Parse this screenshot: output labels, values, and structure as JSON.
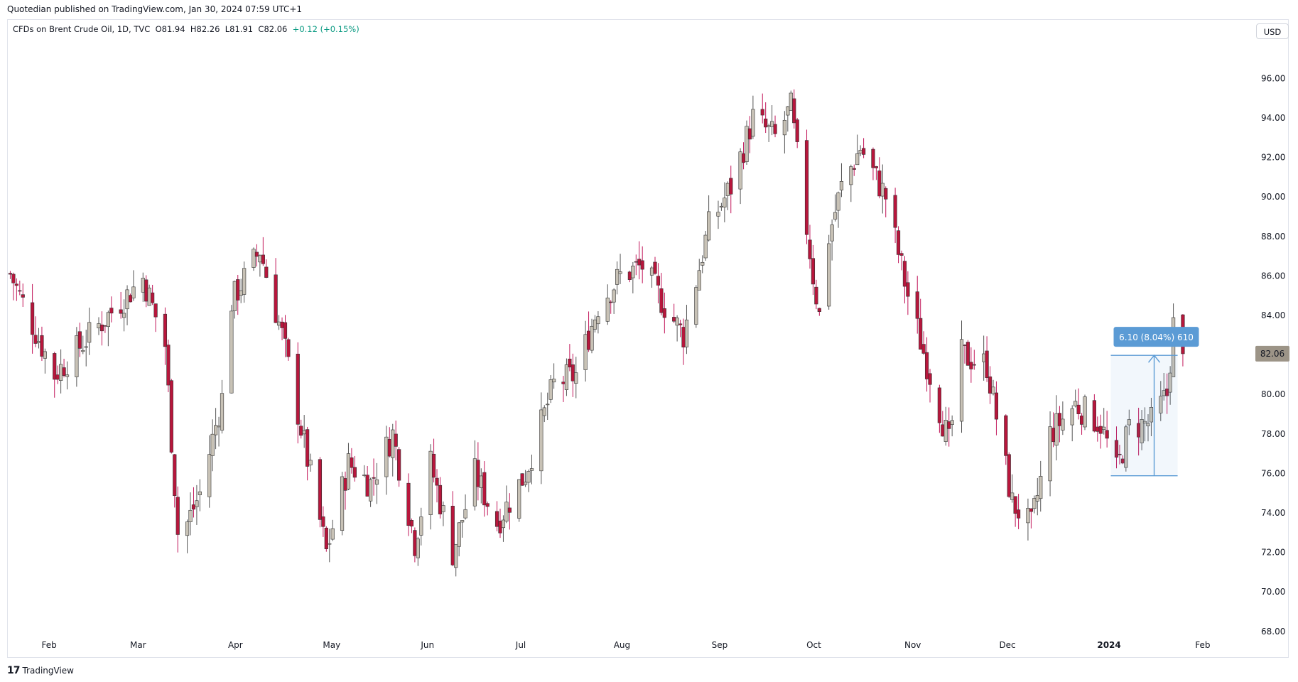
{
  "header": {
    "published": "Quotedian published on TradingView.com, Jan 30, 2024 07:59 UTC+1"
  },
  "legend": {
    "symbol": "CFDs on Brent Crude Oil, 1D, TVC",
    "open": "O81.94",
    "high": "H82.26",
    "low": "L81.91",
    "close": "C82.06",
    "change": "+0.12 (+0.15%)"
  },
  "currency": "USD",
  "footer": {
    "brand": "TradingView"
  },
  "colors": {
    "up_fill": "#c8c2b6",
    "down_fill": "#b8163c",
    "up_wick": "#555555",
    "down_wick": "#c2185b",
    "measure": "#5b9bd5",
    "price_tag": "#9c9487"
  },
  "chart_data": {
    "type": "candlestick",
    "y_ticks": [
      "96.00",
      "94.00",
      "92.00",
      "90.00",
      "88.00",
      "86.00",
      "84.00",
      "82.00",
      "80.00",
      "78.00",
      "76.00",
      "74.00",
      "72.00",
      "70.00",
      "68.00"
    ],
    "ylim": [
      67.5,
      96.5
    ],
    "x_labels": [
      {
        "label": "Feb",
        "date": "2023-02-01",
        "bold": false
      },
      {
        "label": "Mar",
        "date": "2023-03-01",
        "bold": false
      },
      {
        "label": "Apr",
        "date": "2023-04-01",
        "bold": false
      },
      {
        "label": "May",
        "date": "2023-05-01",
        "bold": false
      },
      {
        "label": "Jun",
        "date": "2023-06-01",
        "bold": false
      },
      {
        "label": "Jul",
        "date": "2023-07-01",
        "bold": false
      },
      {
        "label": "Aug",
        "date": "2023-08-01",
        "bold": false
      },
      {
        "label": "Sep",
        "date": "2023-09-01",
        "bold": false
      },
      {
        "label": "Oct",
        "date": "2023-10-01",
        "bold": false
      },
      {
        "label": "Nov",
        "date": "2023-11-01",
        "bold": false
      },
      {
        "label": "Dec",
        "date": "2023-12-01",
        "bold": false
      },
      {
        "label": "2024",
        "date": "2024-01-01",
        "bold": true
      },
      {
        "label": "Feb",
        "date": "2024-02-01",
        "bold": false
      }
    ],
    "xlim": [
      "2023-01-22",
      "2024-02-16"
    ],
    "last_price": {
      "value": 82.06,
      "label": "82.06"
    },
    "measure": {
      "label": "6.10 (8.04%) 610",
      "from_date": "2024-01-08",
      "to_date": "2024-01-26",
      "from_price": 75.88,
      "to_price": 81.98
    },
    "closes": [
      [
        "2023-01-23",
        86.1
      ],
      [
        "2023-02-06",
        81.0
      ],
      [
        "2023-02-20",
        83.5
      ],
      [
        "2023-03-06",
        85.9
      ],
      [
        "2023-03-13",
        82.5
      ],
      [
        "2023-03-17",
        73.0
      ],
      [
        "2023-03-20",
        73.5
      ],
      [
        "2023-03-24",
        75.0
      ],
      [
        "2023-03-31",
        79.8
      ],
      [
        "2023-04-03",
        84.7
      ],
      [
        "2023-04-12",
        87.3
      ],
      [
        "2023-04-19",
        83.0
      ],
      [
        "2023-04-26",
        77.5
      ],
      [
        "2023-05-03",
        72.0
      ],
      [
        "2023-05-10",
        76.5
      ],
      [
        "2023-05-17",
        75.5
      ],
      [
        "2023-05-24",
        78.0
      ],
      [
        "2023-05-31",
        72.5
      ],
      [
        "2023-06-05",
        76.5
      ],
      [
        "2023-06-12",
        72.0
      ],
      [
        "2023-06-19",
        76.0
      ],
      [
        "2023-06-26",
        73.5
      ],
      [
        "2023-07-05",
        76.0
      ],
      [
        "2023-07-14",
        80.5
      ],
      [
        "2023-07-21",
        81.0
      ],
      [
        "2023-07-28",
        84.5
      ],
      [
        "2023-08-04",
        86.0
      ],
      [
        "2023-08-11",
        86.5
      ],
      [
        "2023-08-18",
        84.5
      ],
      [
        "2023-08-24",
        83.0
      ],
      [
        "2023-09-01",
        88.5
      ],
      [
        "2023-09-08",
        90.5
      ],
      [
        "2023-09-15",
        94.0
      ],
      [
        "2023-09-22",
        93.0
      ],
      [
        "2023-09-27",
        94.5
      ],
      [
        "2023-10-04",
        86.0
      ],
      [
        "2023-10-06",
        84.0
      ],
      [
        "2023-10-09",
        88.0
      ],
      [
        "2023-10-13",
        90.5
      ],
      [
        "2023-10-19",
        92.5
      ],
      [
        "2023-10-27",
        90.0
      ],
      [
        "2023-11-03",
        85.0
      ],
      [
        "2023-11-10",
        81.0
      ],
      [
        "2023-11-16",
        77.5
      ],
      [
        "2023-11-20",
        82.0
      ],
      [
        "2023-11-28",
        81.5
      ],
      [
        "2023-12-06",
        74.5
      ],
      [
        "2023-12-12",
        73.3
      ],
      [
        "2023-12-18",
        78.0
      ],
      [
        "2023-12-26",
        79.5
      ],
      [
        "2024-01-03",
        78.5
      ],
      [
        "2024-01-08",
        76.1
      ],
      [
        "2024-01-12",
        78.3
      ],
      [
        "2024-01-19",
        78.6
      ],
      [
        "2024-01-24",
        80.0
      ],
      [
        "2024-01-26",
        83.5
      ],
      [
        "2024-01-29",
        82.06
      ]
    ]
  }
}
